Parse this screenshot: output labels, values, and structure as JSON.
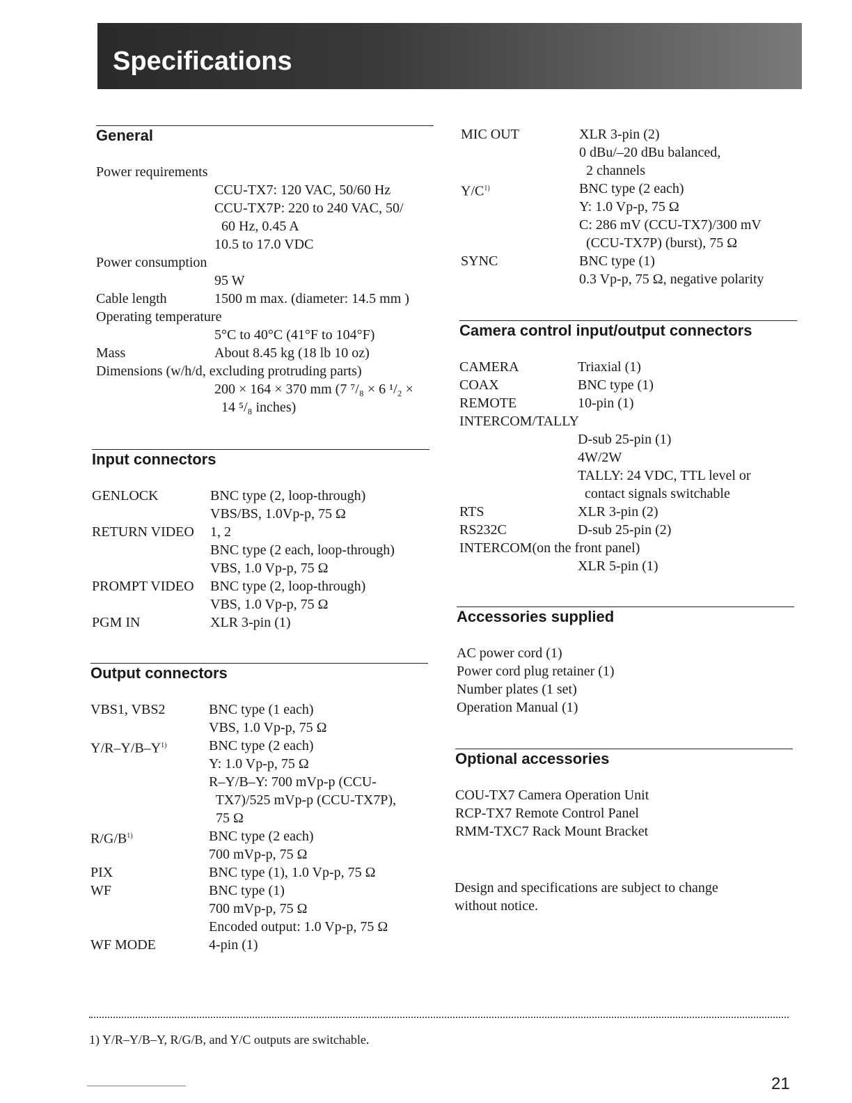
{
  "title": "Specifications",
  "sections": [
    {
      "id": "general",
      "heading": "General",
      "rows": [
        {
          "label": "Power requirements",
          "full": true,
          "values": []
        },
        {
          "label": "",
          "values": [
            "CCU-TX7: 120 VAC, 50/60 Hz",
            "CCU-TX7P: 220 to 240 VAC, 50/",
            "  60 Hz, 0.45 A",
            "10.5 to 17.0 VDC"
          ]
        },
        {
          "label": "Power consumption",
          "full": true,
          "values": []
        },
        {
          "label": "",
          "values": [
            "95 W"
          ]
        },
        {
          "label": "Cable length",
          "values": [
            "1500 m max. (diameter: 14.5 mm )"
          ]
        },
        {
          "label": "Operating temperature",
          "full": true,
          "values": []
        },
        {
          "label": "",
          "values": [
            "5°C to 40°C (41°F to 104°F)"
          ]
        },
        {
          "label": "Mass",
          "values": [
            "About 8.45 kg (18 lb 10 oz)"
          ]
        },
        {
          "label": "Dimensions (w/h/d, excluding protruding parts)",
          "full": true,
          "values": []
        },
        {
          "label": "",
          "values": [
            "200 × 164 × 370 mm (7 ⁷/₈ × 6 ¹/₂ ×",
            "  14 ⁵/₈ inches)"
          ]
        }
      ]
    },
    {
      "id": "input",
      "heading": "Input connectors",
      "rows": [
        {
          "label": "GENLOCK",
          "values": [
            "BNC type (2, loop-through)",
            "VBS/BS, 1.0Vp-p, 75 Ω"
          ]
        },
        {
          "label": "RETURN VIDEO",
          "values": [
            "1, 2",
            "BNC type (2 each, loop-through)",
            "VBS, 1.0 Vp-p, 75 Ω"
          ]
        },
        {
          "label": "PROMPT VIDEO",
          "values": [
            "BNC type (2, loop-through)",
            "VBS, 1.0 Vp-p, 75 Ω"
          ]
        },
        {
          "label": "PGM IN",
          "values": [
            "XLR 3-pin (1)"
          ]
        }
      ]
    },
    {
      "id": "output",
      "heading": "Output connectors",
      "rows": [
        {
          "label": "VBS1, VBS2",
          "values": [
            "BNC type (1 each)",
            "VBS, 1.0 Vp-p, 75 Ω"
          ]
        },
        {
          "label": "Y/R–Y/B–Y",
          "sup": "1)",
          "values": [
            "BNC type (2 each)",
            "Y: 1.0 Vp-p, 75 Ω",
            "R–Y/B–Y: 700 mVp-p (CCU-",
            "  TX7)/525 mVp-p (CCU-TX7P),",
            "  75 Ω"
          ]
        },
        {
          "label": "R/G/B",
          "sup": "1)",
          "values": [
            "BNC type (2 each)",
            "700 mVp-p, 75 Ω"
          ]
        },
        {
          "label": "PIX",
          "values": [
            "BNC type (1), 1.0 Vp-p, 75 Ω"
          ]
        },
        {
          "label": "WF",
          "values": [
            "BNC type (1)",
            "700 mVp-p, 75 Ω",
            "Encoded output: 1.0 Vp-p, 75 Ω"
          ]
        },
        {
          "label": "WF MODE",
          "values": [
            "4-pin (1)"
          ]
        }
      ]
    },
    {
      "id": "output-cont",
      "heading": "",
      "rows": [
        {
          "label": "MIC OUT",
          "values": [
            "XLR 3-pin (2)",
            "0 dBu/–20 dBu balanced,",
            "  2 channels"
          ]
        },
        {
          "label": "Y/C",
          "sup": "1)",
          "values": [
            "BNC type (2 each)",
            "Y: 1.0 Vp-p, 75 Ω",
            "C: 286 mV (CCU-TX7)/300 mV",
            "  (CCU-TX7P) (burst), 75 Ω"
          ]
        },
        {
          "label": "SYNC",
          "values": [
            "BNC type (1)",
            "0.3 Vp-p, 75 Ω, negative polarity"
          ]
        }
      ]
    },
    {
      "id": "camera",
      "heading": "Camera control input/output connectors",
      "rows": [
        {
          "label": "CAMERA",
          "values": [
            "Triaxial (1)"
          ]
        },
        {
          "label": "COAX",
          "values": [
            "BNC type (1)"
          ]
        },
        {
          "label": "REMOTE",
          "values": [
            "10-pin (1)"
          ]
        },
        {
          "label": "INTERCOM/TALLY",
          "full": true,
          "values": []
        },
        {
          "label": "",
          "values": [
            "D-sub 25-pin (1)",
            "4W/2W",
            "TALLY: 24 VDC, TTL level or",
            "  contact signals switchable"
          ]
        },
        {
          "label": "RTS",
          "values": [
            "XLR 3-pin (2)"
          ]
        },
        {
          "label": "RS232C",
          "values": [
            "D-sub 25-pin (2)"
          ]
        },
        {
          "label": "INTERCOM(on the front panel)",
          "full": true,
          "values": []
        },
        {
          "label": "",
          "values": [
            "XLR 5-pin (1)"
          ]
        }
      ]
    },
    {
      "id": "accessories",
      "heading": "Accessories supplied",
      "rows": [
        {
          "label": "AC power cord (1)",
          "full": true,
          "values": []
        },
        {
          "label": "Power cord plug retainer (1)",
          "full": true,
          "values": []
        },
        {
          "label": "Number plates (1 set)",
          "full": true,
          "values": []
        },
        {
          "label": "Operation Manual (1)",
          "full": true,
          "values": []
        }
      ]
    },
    {
      "id": "optional",
      "heading": "Optional accessories",
      "rows": [
        {
          "label": "COU-TX7 Camera Operation Unit",
          "full": true,
          "values": []
        },
        {
          "label": "RCP-TX7 Remote Control Panel",
          "full": true,
          "values": []
        },
        {
          "label": "RMM-TXC7 Rack Mount Bracket",
          "full": true,
          "values": []
        }
      ]
    }
  ],
  "note": "Design and specifications are subject to change without notice.",
  "footnote": "1)  Y/R–Y/B–Y, R/G/B, and Y/C outputs are switchable.",
  "page_number": "21"
}
